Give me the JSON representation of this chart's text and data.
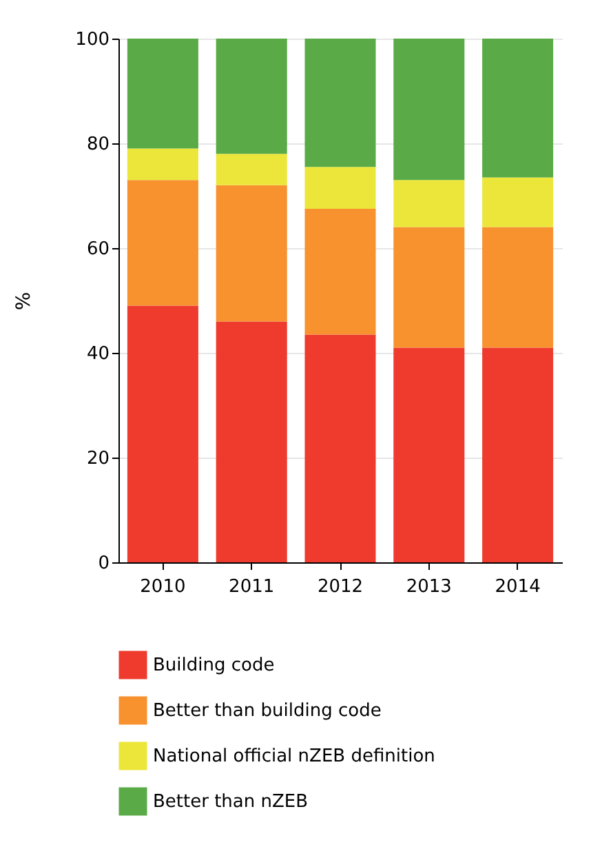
{
  "chart_data": {
    "type": "bar",
    "stacked": true,
    "ylabel": "%",
    "categories": [
      "2010",
      "2011",
      "2012",
      "2013",
      "2014"
    ],
    "series": [
      {
        "name": "Building code",
        "color": "#ee3b2e",
        "values": [
          49,
          46,
          43.5,
          41,
          41
        ]
      },
      {
        "name": "Better than building code",
        "color": "#f7922f",
        "values": [
          24,
          26,
          24,
          23,
          23
        ]
      },
      {
        "name": "National official nZEB definition",
        "color": "#ece63b",
        "values": [
          6,
          6,
          8,
          9,
          9.5
        ]
      },
      {
        "name": "Better than nZEB",
        "color": "#5aab47",
        "values": [
          21,
          22,
          24.5,
          27,
          26.5
        ]
      }
    ],
    "ylim": [
      0,
      100
    ],
    "yticks": [
      0,
      20,
      40,
      60,
      80,
      100
    ],
    "grid": "y",
    "legend": "bottom"
  }
}
